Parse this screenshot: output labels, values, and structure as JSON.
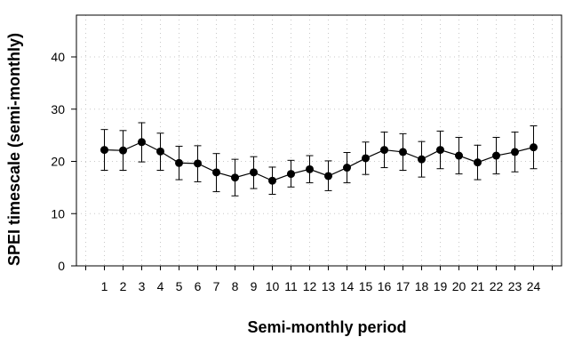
{
  "chart_data": {
    "type": "line",
    "title": "",
    "xlabel": "Semi-monthly period",
    "ylabel": "SPEI timescale (semi-monthly)",
    "x": [
      1,
      2,
      3,
      4,
      5,
      6,
      7,
      8,
      9,
      10,
      11,
      12,
      13,
      14,
      15,
      16,
      17,
      18,
      19,
      20,
      21,
      22,
      23,
      24
    ],
    "xlim": [
      -0.5,
      25.5
    ],
    "ylim": [
      0,
      48
    ],
    "yticks": [
      0,
      10,
      20,
      30,
      40
    ],
    "grid": "dotted",
    "legend": "none",
    "series": [
      {
        "values": [
          22.2,
          22.1,
          23.7,
          21.9,
          19.7,
          19.6,
          17.9,
          16.9,
          17.9,
          16.3,
          17.6,
          18.5,
          17.2,
          18.8,
          20.6,
          22.2,
          21.8,
          20.4,
          22.2,
          21.1,
          19.8,
          21.1,
          21.8,
          22.7
        ],
        "error_upper": [
          26.1,
          25.9,
          27.4,
          25.4,
          22.9,
          23.0,
          21.5,
          20.4,
          20.9,
          18.9,
          20.2,
          21.1,
          20.1,
          21.7,
          23.7,
          25.6,
          25.3,
          23.8,
          25.8,
          24.6,
          23.1,
          24.6,
          25.6,
          26.8
        ],
        "error_lower": [
          18.3,
          18.3,
          19.9,
          18.3,
          16.5,
          16.1,
          14.2,
          13.4,
          14.8,
          13.7,
          15.1,
          15.9,
          14.4,
          15.9,
          17.5,
          18.8,
          18.3,
          17.0,
          18.6,
          17.6,
          16.5,
          17.6,
          18.0,
          18.6
        ]
      }
    ],
    "colors": {
      "line": "#000000",
      "marker": "#000000",
      "grid": "#c8c8c8"
    }
  }
}
